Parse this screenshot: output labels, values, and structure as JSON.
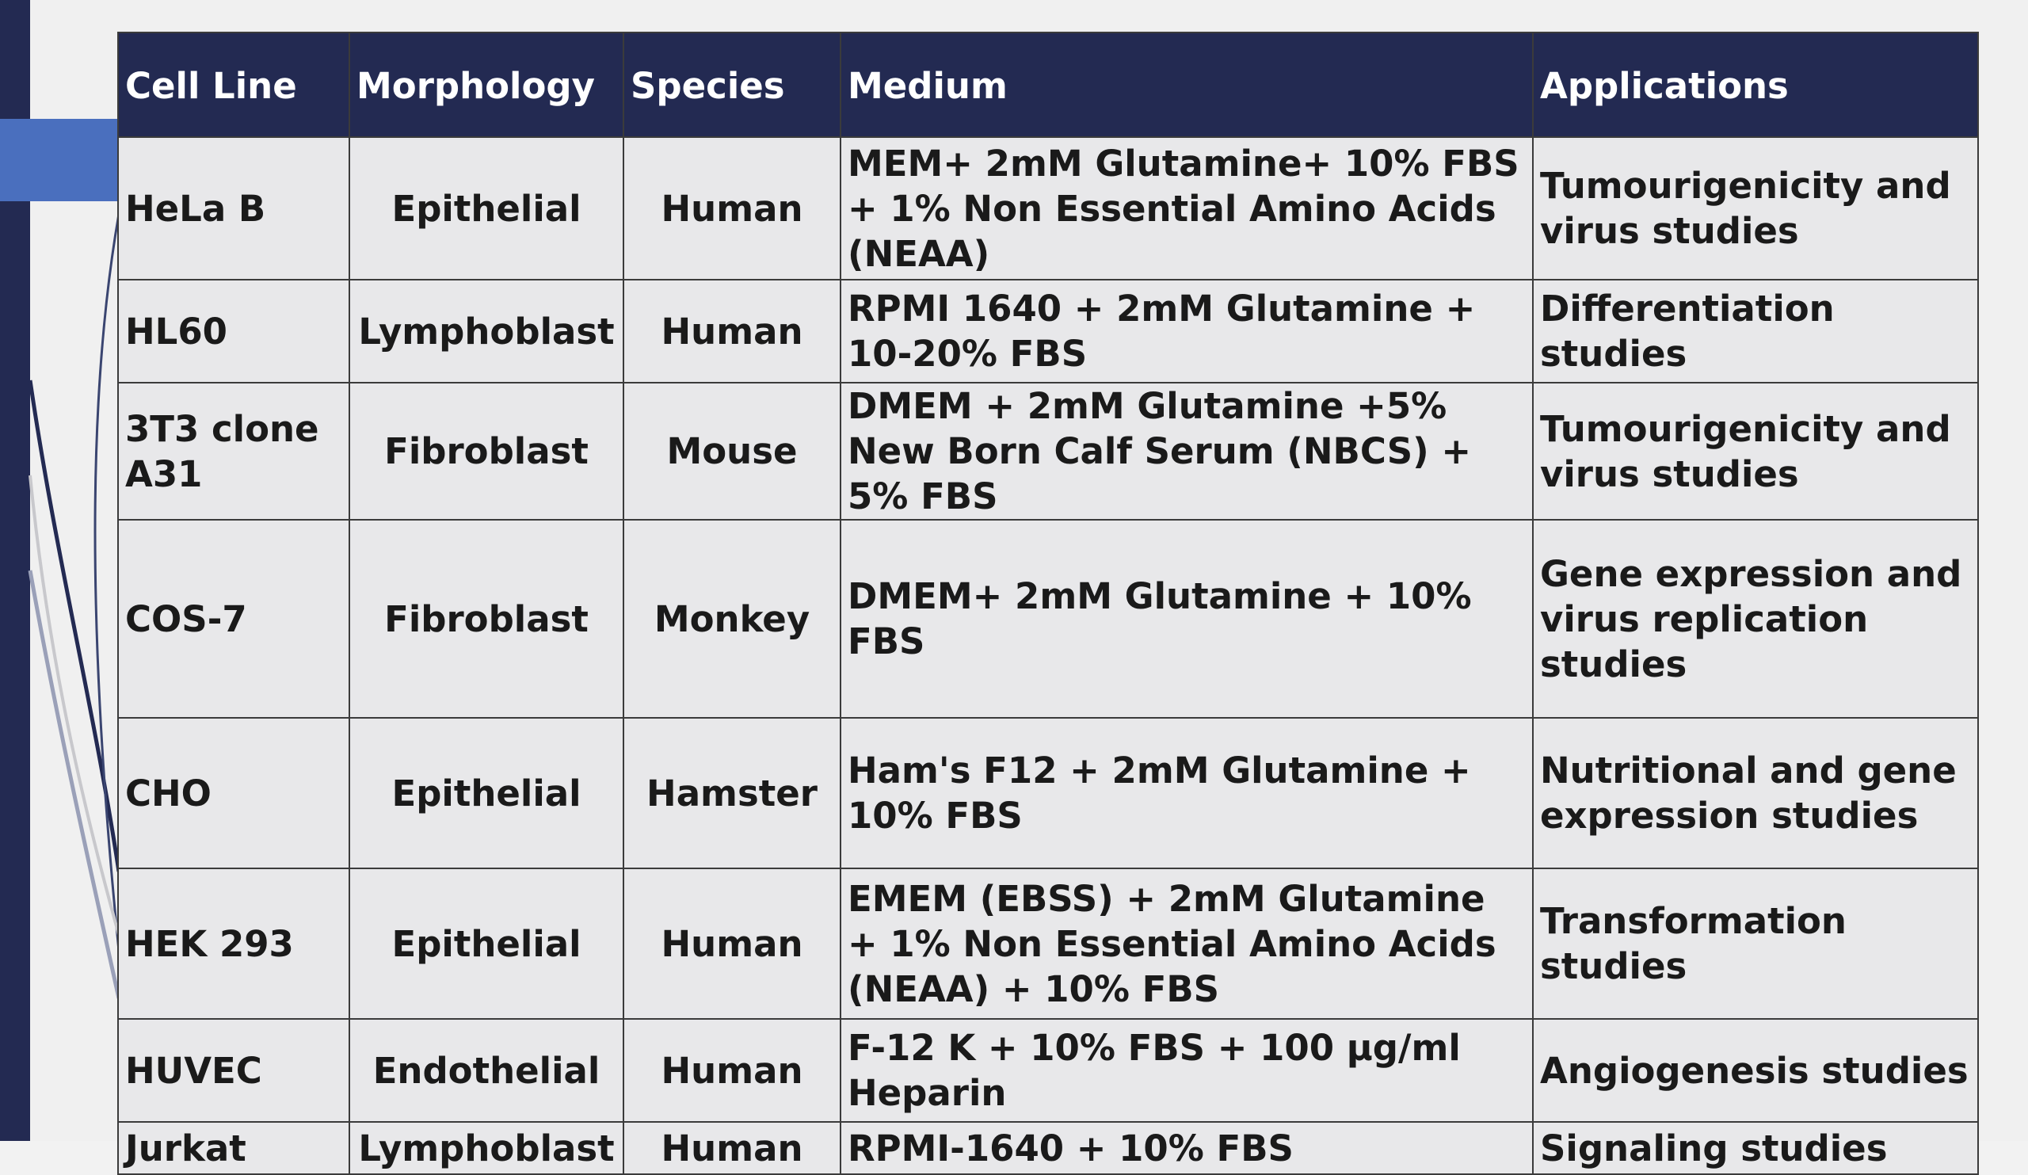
{
  "table": {
    "headers": [
      "Cell Line",
      "Morphology",
      "Species",
      "Medium",
      "Applications"
    ],
    "rows": [
      {
        "cell_line": "HeLa B",
        "morphology": "Epithelial",
        "species": "Human",
        "medium": "MEM+ 2mM Glutamine+ 10% FBS + 1% Non Essential Amino Acids (NEAA)",
        "applications": "Tumourigenicity and virus studies"
      },
      {
        "cell_line": "HL60",
        "morphology": "Lymphoblast",
        "species": "Human",
        "medium": "RPMI 1640 + 2mM Glutamine + 10-20% FBS",
        "applications": "Differentiation studies"
      },
      {
        "cell_line": "3T3 clone A31",
        "morphology": "Fibroblast",
        "species": "Mouse",
        "medium": "DMEM + 2mM Glutamine +5% New Born Calf Serum (NBCS) + 5% FBS",
        "applications": "Tumourigenicity and virus studies"
      },
      {
        "cell_line": "COS-7",
        "morphology": "Fibroblast",
        "species": "Monkey",
        "medium": "DMEM+ 2mM Glutamine + 10% FBS",
        "applications": "Gene expression and virus replication studies"
      },
      {
        "cell_line": "CHO",
        "morphology": "Epithelial",
        "species": "Hamster",
        "medium": "Ham's F12 + 2mM Glutamine + 10% FBS",
        "applications": "Nutritional and gene expression studies"
      },
      {
        "cell_line": "HEK 293",
        "morphology": "Epithelial",
        "species": "Human",
        "medium": "EMEM (EBSS) + 2mM Glutamine + 1% Non Essential Amino Acids (NEAA) + 10% FBS",
        "applications": "Transformation studies"
      },
      {
        "cell_line": "HUVEC",
        "morphology": "Endothelial",
        "species": "Human",
        "medium": "F-12 K + 10% FBS + 100 µg/ml Heparin",
        "applications": "Angiogenesis studies"
      },
      {
        "cell_line": "Jurkat",
        "morphology": "Lymphoblast",
        "species": "Human",
        "medium": "RPMI-1640 + 10% FBS",
        "applications": "Signaling studies"
      }
    ]
  },
  "colors": {
    "header_bg": "#232a52",
    "accent": "#4a6fbe",
    "cell_bg": "#e8e8ea"
  }
}
